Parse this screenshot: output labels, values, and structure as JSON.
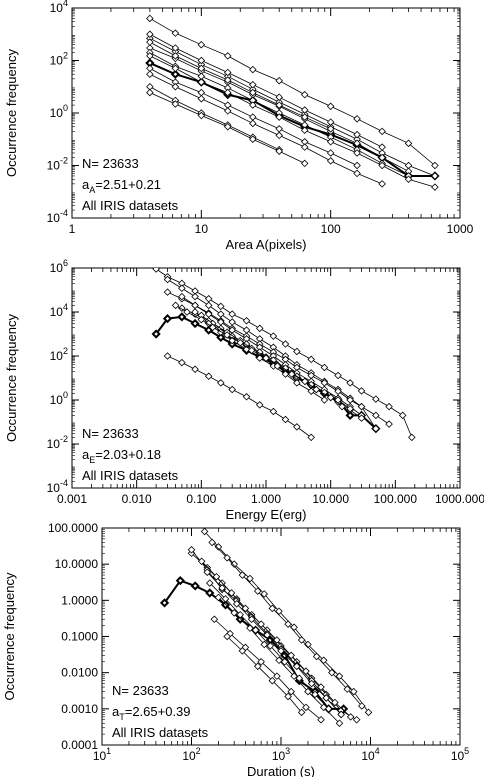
{
  "chart_data": [
    {
      "type": "line",
      "xscale": "log",
      "yscale": "log",
      "xlim": [
        1,
        1000
      ],
      "ylim": [
        0.0001,
        10000
      ],
      "xlabel": "Area A(pixels)",
      "ylabel": "Occurrence frequency",
      "xticks": [
        1,
        10,
        100,
        1000
      ],
      "xtick_labels": [
        "1",
        "10",
        "100",
        "1000"
      ],
      "yticks": [
        0.0001,
        0.01,
        1,
        100,
        10000
      ],
      "ytick_labels": [
        {
          "base": "10",
          "exp": "-4"
        },
        {
          "base": "10",
          "exp": "-2"
        },
        {
          "base": "10",
          "exp": "0"
        },
        {
          "base": "10",
          "exp": "2"
        },
        {
          "base": "10",
          "exp": "4"
        }
      ],
      "annotations": {
        "n_label": "N= 23633",
        "slope_prefix": "a",
        "slope_sub": "A",
        "slope_value": "=2.51+0.21",
        "dataset_label": "All IRIS datasets"
      },
      "bold_series": 0,
      "series": [
        {
          "x": [
            4,
            6.3,
            10,
            16,
            25,
            40,
            63,
            100,
            160,
            250,
            400,
            640
          ],
          "y": [
            80,
            30,
            15,
            5,
            3,
            0.8,
            0.3,
            0.15,
            0.06,
            0.02,
            0.004,
            0.004
          ]
        },
        {
          "x": [
            4,
            6.3,
            10,
            16,
            25,
            40,
            63,
            100,
            160,
            250,
            400,
            640
          ],
          "y": [
            4000,
            1100,
            400,
            150,
            45,
            17,
            5,
            1.8,
            0.6,
            0.2,
            0.07,
            0.01
          ]
        },
        {
          "x": [
            4,
            6.3,
            10,
            16,
            25,
            40,
            63,
            100,
            160,
            250,
            400,
            640
          ],
          "y": [
            700,
            220,
            70,
            25,
            8,
            2.6,
            0.9,
            0.3,
            0.1,
            0.03,
            0.01,
            0.004
          ]
        },
        {
          "x": [
            4,
            6.3,
            10,
            16,
            25,
            40,
            63,
            100,
            160,
            250,
            400
          ],
          "y": [
            300,
            120,
            40,
            15,
            5,
            1.8,
            0.6,
            0.2,
            0.07,
            0.02,
            0.006
          ]
        },
        {
          "x": [
            4,
            6.3,
            10,
            16,
            25,
            40,
            63,
            100,
            160,
            250,
            400
          ],
          "y": [
            200,
            60,
            25,
            9,
            3,
            1,
            0.35,
            0.12,
            0.04,
            0.012,
            0.004
          ]
        },
        {
          "x": [
            4,
            6.3,
            10,
            16,
            25,
            40,
            63,
            100,
            160,
            250,
            400,
            640
          ],
          "y": [
            150,
            50,
            15,
            6,
            2,
            0.7,
            0.22,
            0.08,
            0.03,
            0.01,
            0.003,
            0.0015
          ]
        },
        {
          "x": [
            4,
            6.3,
            10,
            16,
            25,
            40,
            63,
            100,
            160
          ],
          "y": [
            50,
            15,
            6,
            2,
            0.7,
            0.25,
            0.08,
            0.03,
            0.01
          ]
        },
        {
          "x": [
            4,
            6.3,
            10,
            16,
            25,
            40,
            63,
            100,
            160,
            250
          ],
          "y": [
            30,
            10,
            3.5,
            1.2,
            0.4,
            0.14,
            0.05,
            0.015,
            0.005,
            0.002
          ]
        },
        {
          "x": [
            4,
            6.3,
            10,
            16,
            25,
            40
          ],
          "y": [
            10,
            3,
            1,
            0.35,
            0.12,
            0.04
          ]
        },
        {
          "x": [
            4,
            6.3,
            10,
            16,
            25,
            40,
            63
          ],
          "y": [
            6,
            2.2,
            0.8,
            0.3,
            0.1,
            0.035,
            0.012
          ]
        },
        {
          "x": [
            4,
            6.3,
            10,
            16,
            25,
            40,
            63,
            100
          ],
          "y": [
            500,
            150,
            50,
            18,
            6,
            2,
            0.7,
            0.25
          ]
        },
        {
          "x": [
            4,
            6.3,
            10,
            16,
            25,
            40,
            63,
            100,
            160,
            250
          ],
          "y": [
            1000,
            300,
            100,
            35,
            12,
            4,
            1.3,
            0.45,
            0.15,
            0.05
          ]
        }
      ]
    },
    {
      "type": "line",
      "xscale": "log",
      "yscale": "log",
      "xlim": [
        0.001,
        1000
      ],
      "ylim": [
        0.0001,
        1000000
      ],
      "xlabel": "Energy E(erg)",
      "ylabel": "Occurrence frequency",
      "xticks": [
        0.001,
        0.01,
        0.1,
        1,
        10,
        100,
        1000
      ],
      "xtick_labels": [
        "0.001",
        "0.010",
        "0.100",
        "1.000",
        "10.000",
        "100.000",
        "1000.000"
      ],
      "yticks": [
        0.0001,
        0.01,
        1,
        100,
        10000,
        1000000
      ],
      "ytick_labels": [
        {
          "base": "10",
          "exp": "-4"
        },
        {
          "base": "10",
          "exp": "-2"
        },
        {
          "base": "10",
          "exp": "0"
        },
        {
          "base": "10",
          "exp": "2"
        },
        {
          "base": "10",
          "exp": "4"
        },
        {
          "base": "10",
          "exp": "6"
        }
      ],
      "annotations": {
        "n_label": "N= 23633",
        "slope_prefix": "a",
        "slope_sub": "E",
        "slope_value": "=2.03+0.18",
        "dataset_label": "All IRIS datasets"
      },
      "bold_series": 0,
      "series": [
        {
          "x": [
            0.02,
            0.03,
            0.05,
            0.08,
            0.13,
            0.2,
            0.3,
            0.5,
            0.8,
            1.3,
            2,
            3,
            5,
            8,
            13,
            20,
            30,
            50
          ],
          "y": [
            1000,
            5000,
            6000,
            3000,
            1500,
            700,
            350,
            180,
            90,
            45,
            20,
            10,
            5,
            2,
            1,
            0.2,
            0.2,
            0.05
          ]
        },
        {
          "x": [
            0.02,
            0.03,
            0.05,
            0.08,
            0.13,
            0.2,
            0.3,
            0.5,
            0.8,
            1.3,
            2,
            3,
            5,
            8,
            13,
            20,
            30,
            50,
            80,
            130,
            180
          ],
          "y": [
            900000,
            400000,
            200000,
            90000,
            40000,
            18000,
            8000,
            4000,
            1800,
            800,
            350,
            160,
            70,
            30,
            13,
            6,
            2.6,
            1.1,
            0.5,
            0.2,
            0.02
          ]
        },
        {
          "x": [
            0.03,
            0.05,
            0.08,
            0.13,
            0.2,
            0.3,
            0.5,
            0.8,
            1.3,
            2,
            3,
            5,
            8,
            13,
            20,
            30,
            50
          ],
          "y": [
            300000,
            120000,
            50000,
            20000,
            8000,
            3500,
            1500,
            600,
            250,
            100,
            40,
            17,
            7,
            3,
            1.2,
            0.5,
            0.05
          ]
        },
        {
          "x": [
            0.03,
            0.05,
            0.08,
            0.13,
            0.2,
            0.3,
            0.5,
            0.8,
            1.3,
            2,
            3,
            5,
            8,
            13,
            20,
            30,
            50,
            80
          ],
          "y": [
            80000,
            40000,
            20000,
            9000,
            4000,
            1800,
            800,
            350,
            150,
            70,
            30,
            13,
            6,
            2.5,
            1,
            0.5,
            0.2,
            0.08
          ]
        },
        {
          "x": [
            0.05,
            0.08,
            0.13,
            0.2,
            0.3,
            0.5,
            0.8,
            1.3,
            2,
            3,
            5,
            8,
            13,
            20,
            30
          ],
          "y": [
            50000,
            20000,
            8000,
            3500,
            1500,
            600,
            250,
            100,
            40,
            17,
            7,
            3,
            1.2,
            0.5,
            0.2
          ]
        },
        {
          "x": [
            0.05,
            0.08,
            0.13,
            0.2,
            0.3,
            0.5,
            0.8,
            1.3,
            2,
            3,
            5,
            8,
            13,
            20,
            30
          ],
          "y": [
            15000,
            8000,
            3500,
            1500,
            700,
            300,
            130,
            55,
            25,
            10,
            4.5,
            2,
            0.8,
            0.35,
            0.15
          ]
        },
        {
          "x": [
            0.08,
            0.13,
            0.2,
            0.3,
            0.5,
            0.8,
            1.3,
            2,
            3,
            5,
            8,
            13,
            20
          ],
          "y": [
            10000,
            4000,
            1800,
            800,
            350,
            150,
            65,
            28,
            12,
            5,
            2.2,
            1,
            0.4
          ]
        },
        {
          "x": [
            0.1,
            0.15,
            0.25,
            0.4,
            0.6,
            1,
            1.5,
            2.5,
            4,
            6,
            10,
            15
          ],
          "y": [
            7000,
            3000,
            1200,
            500,
            220,
            90,
            40,
            17,
            7,
            3,
            1.3,
            0.5
          ]
        },
        {
          "x": [
            0.13,
            0.2,
            0.3,
            0.5,
            0.8,
            1.3,
            2,
            3,
            5,
            8
          ],
          "y": [
            3000,
            1200,
            500,
            200,
            80,
            35,
            15,
            6,
            2.5,
            1
          ]
        },
        {
          "x": [
            0.03,
            0.05,
            0.08,
            0.13,
            0.2,
            0.3,
            0.5,
            0.8,
            1.3,
            2,
            3,
            5
          ],
          "y": [
            100,
            50,
            25,
            12,
            6,
            3,
            1.4,
            0.6,
            0.3,
            0.13,
            0.06,
            0.02
          ]
        },
        {
          "x": [
            0.04,
            0.06,
            0.1,
            0.15,
            0.25,
            0.4,
            0.6,
            1,
            1.5,
            2.5,
            4,
            6,
            10
          ],
          "y": [
            20000,
            10000,
            4500,
            2000,
            900,
            400,
            180,
            80,
            35,
            15,
            7,
            3,
            1.3
          ]
        }
      ]
    },
    {
      "type": "line",
      "xscale": "log",
      "yscale": "log",
      "xlim": [
        10,
        100000
      ],
      "ylim": [
        0.0001,
        100
      ],
      "xlabel": "Duration (s)",
      "ylabel": "Occurrence frequency",
      "xticks": [
        10,
        100,
        1000,
        10000,
        100000
      ],
      "xtick_labels": [
        {
          "base": "10",
          "exp": "1"
        },
        {
          "base": "10",
          "exp": "2"
        },
        {
          "base": "10",
          "exp": "3"
        },
        {
          "base": "10",
          "exp": "4"
        },
        {
          "base": "10",
          "exp": "5"
        }
      ],
      "yticks": [
        0.0001,
        0.001,
        0.01,
        0.1,
        1,
        10,
        100
      ],
      "ytick_labels": [
        "0.0001",
        "0.0010",
        "0.0100",
        "0.1000",
        "1.0000",
        "10.0000",
        "100.0000"
      ],
      "annotations": {
        "n_label": "N= 23633",
        "slope_prefix": "a",
        "slope_sub": "T",
        "slope_value": "=2.65+0.39",
        "dataset_label": "All IRIS datasets"
      },
      "bold_series": 0,
      "series": [
        {
          "x": [
            50,
            75,
            110,
            160,
            240,
            350,
            520,
            760,
            1100,
            1600,
            2400,
            3400,
            5000
          ],
          "y": [
            0.85,
            3.5,
            2.5,
            1.6,
            0.75,
            0.3,
            0.15,
            0.08,
            0.03,
            0.006,
            0.003,
            0.001,
            0.001
          ]
        },
        {
          "x": [
            140,
            200,
            300,
            450,
            650,
            950,
            1400,
            2000,
            3000,
            4500,
            6500,
            9500
          ],
          "y": [
            80,
            30,
            10,
            4,
            1.5,
            0.5,
            0.18,
            0.06,
            0.022,
            0.008,
            0.003,
            0.0008
          ]
        },
        {
          "x": [
            170,
            250,
            370,
            550,
            800,
            1200,
            1700,
            2500,
            3700,
            5500,
            8000
          ],
          "y": [
            40,
            15,
            5,
            1.8,
            0.6,
            0.22,
            0.08,
            0.028,
            0.01,
            0.0035,
            0.0012
          ]
        },
        {
          "x": [
            100,
            150,
            220,
            320,
            470,
            700,
            1000,
            1500,
            2200,
            3200,
            4700,
            7000
          ],
          "y": [
            20,
            8,
            3,
            1.1,
            0.4,
            0.15,
            0.055,
            0.02,
            0.007,
            0.0025,
            0.0009,
            0.0005
          ]
        },
        {
          "x": [
            100,
            150,
            220,
            320,
            470,
            700,
            1000,
            1500,
            2200,
            3200,
            4700
          ],
          "y": [
            25,
            7,
            2,
            1,
            0.35,
            0.12,
            0.045,
            0.016,
            0.006,
            0.002,
            0.0007
          ]
        },
        {
          "x": [
            130,
            190,
            280,
            400,
            600,
            900,
            1300,
            1900,
            2800,
            4000,
            6000
          ],
          "y": [
            12,
            4.5,
            1.6,
            0.6,
            0.22,
            0.08,
            0.03,
            0.011,
            0.004,
            0.0015,
            0.0006
          ]
        },
        {
          "x": [
            150,
            220,
            320,
            470,
            700,
            1000,
            1500,
            2200,
            3200,
            4700
          ],
          "y": [
            6,
            2.2,
            0.8,
            0.3,
            0.11,
            0.04,
            0.015,
            0.005,
            0.002,
            0.0007
          ]
        },
        {
          "x": [
            160,
            240,
            350,
            520,
            760,
            1100,
            1600,
            2400,
            3400
          ],
          "y": [
            3,
            1.1,
            0.4,
            0.15,
            0.055,
            0.02,
            0.007,
            0.0025,
            0.001
          ]
        },
        {
          "x": [
            180,
            270,
            400,
            600,
            900,
            1300,
            1900,
            2800
          ],
          "y": [
            0.3,
            0.12,
            0.05,
            0.02,
            0.008,
            0.003,
            0.0011,
            0.0005
          ]
        },
        {
          "x": [
            200,
            300,
            450,
            650,
            950,
            1400,
            2000,
            3000,
            4500
          ],
          "y": [
            1.2,
            0.45,
            0.17,
            0.06,
            0.022,
            0.008,
            0.003,
            0.0011,
            0.0004
          ]
        },
        {
          "x": [
            250,
            370,
            550,
            800,
            1200,
            1700
          ],
          "y": [
            0.1,
            0.04,
            0.015,
            0.006,
            0.0022,
            0.0008
          ]
        }
      ]
    }
  ]
}
